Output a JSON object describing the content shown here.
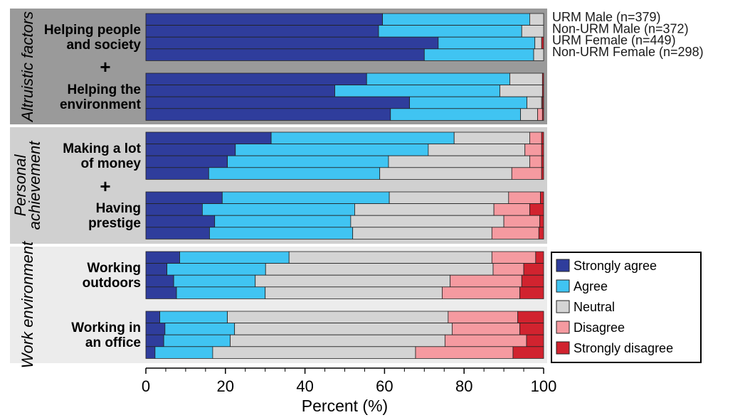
{
  "chart_data": {
    "type": "bar",
    "stacked": true,
    "orientation": "horizontal",
    "xlabel": "Percent (%)",
    "xlim": [
      0,
      100
    ],
    "xticks": [
      0,
      20,
      40,
      60,
      80,
      100
    ],
    "responses": [
      "Strongly agree",
      "Agree",
      "Neutral",
      "Disagree",
      "Strongly disagree"
    ],
    "colors": {
      "Strongly agree": "#2f3d9c",
      "Agree": "#40c4f2",
      "Neutral": "#d4d4d4",
      "Disagree": "#f59aa0",
      "Strongly disagree": "#d1232f"
    },
    "groups": [
      "URM Male (n=379)",
      "Non-URM Male (n=372)",
      "URM Female (n=449)",
      "Non-URM Female (n=298)"
    ],
    "panels": [
      {
        "title": "Altruistic factors",
        "connector": "+",
        "categories": [
          {
            "label": [
              "Helping people",
              "and society"
            ],
            "rows": [
              [
                59.5,
                37,
                3.5,
                0,
                0
              ],
              [
                58.5,
                36,
                5.5,
                0,
                0
              ],
              [
                73.5,
                24.3,
                1.7,
                0,
                0.5
              ],
              [
                70,
                27.5,
                2.5,
                0,
                0
              ]
            ]
          },
          {
            "label": [
              "Helping the",
              "environment"
            ],
            "rows": [
              [
                55.5,
                36,
                8.2,
                0,
                0.3
              ],
              [
                47.5,
                41.5,
                10.7,
                0,
                0.3
              ],
              [
                66.3,
                29.5,
                3.7,
                0.2,
                0.3
              ],
              [
                61.5,
                32.7,
                4.3,
                1.2,
                0.3
              ]
            ]
          }
        ]
      },
      {
        "title": "Personal achievement",
        "connector": "+",
        "categories": [
          {
            "label": [
              "Making a lot",
              "of money"
            ],
            "rows": [
              [
                31.5,
                46,
                19,
                3,
                0.5
              ],
              [
                22.5,
                48.5,
                24.3,
                4.2,
                0.5
              ],
              [
                20.5,
                40.5,
                35.5,
                3,
                0.5
              ],
              [
                15.8,
                43,
                33.2,
                7.5,
                0.5
              ]
            ]
          },
          {
            "label": [
              "Having",
              "prestige"
            ],
            "rows": [
              [
                19.2,
                42,
                30,
                8,
                0.8
              ],
              [
                14.2,
                38.3,
                35,
                9,
                3.5
              ],
              [
                17.3,
                34.2,
                38.5,
                9,
                1
              ],
              [
                16,
                36,
                35,
                11.8,
                1.2
              ]
            ]
          }
        ]
      },
      {
        "title": "Work environment",
        "connector": "",
        "categories": [
          {
            "label": [
              "Working",
              "outdoors"
            ],
            "rows": [
              [
                8.5,
                27.5,
                51,
                11,
                2
              ],
              [
                5.3,
                24.8,
                57.2,
                7.7,
                5
              ],
              [
                7,
                20.5,
                49,
                18,
                5.5
              ],
              [
                7.7,
                22.3,
                44.5,
                19.5,
                6
              ]
            ]
          },
          {
            "label": [
              "Working in",
              "an office"
            ],
            "rows": [
              [
                3.5,
                17,
                55.5,
                17.5,
                6.5
              ],
              [
                4.8,
                17.5,
                54.7,
                17,
                6
              ],
              [
                4.5,
                16.7,
                54,
                20.5,
                4.3
              ],
              [
                2.3,
                14.5,
                51,
                24.5,
                7.7
              ]
            ]
          }
        ]
      }
    ]
  }
}
